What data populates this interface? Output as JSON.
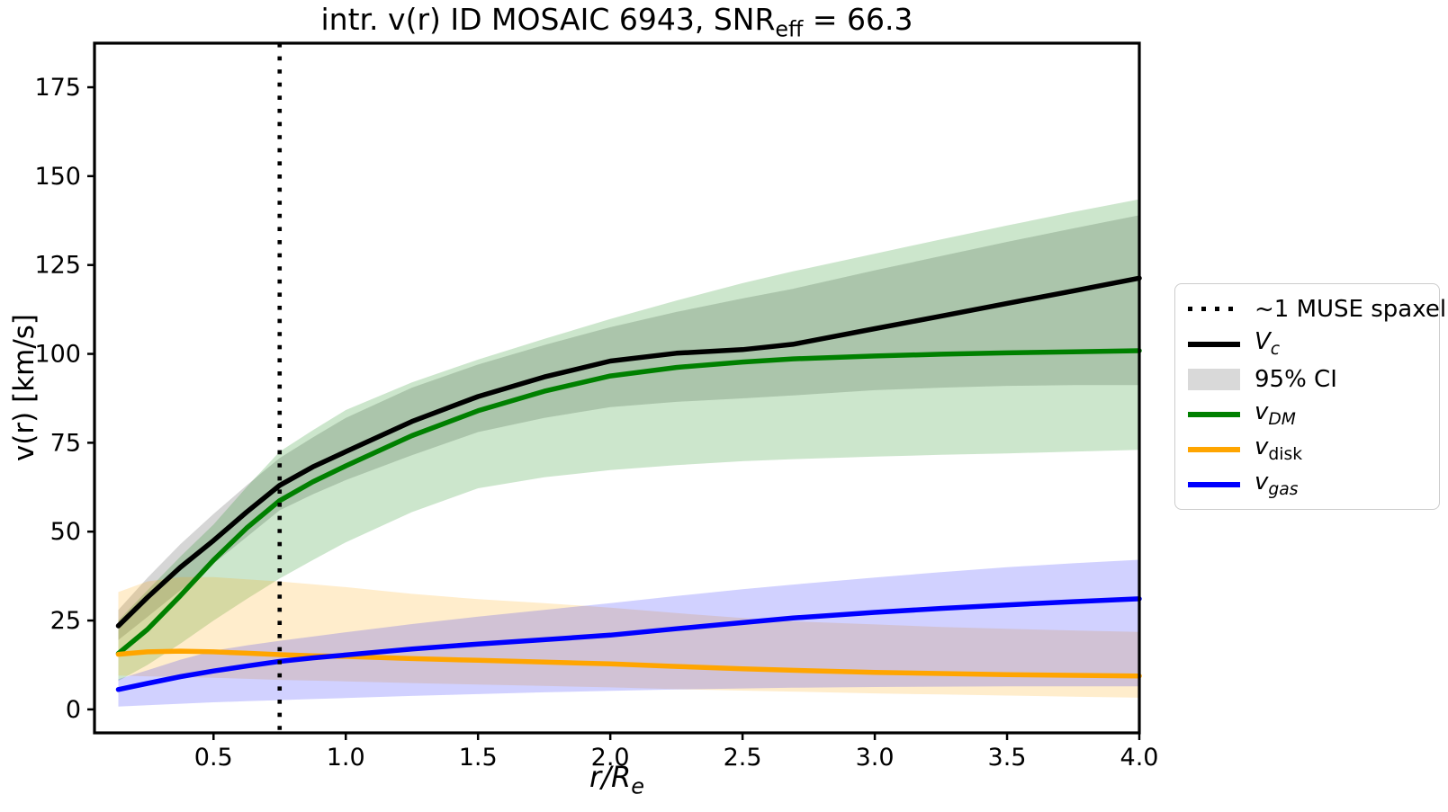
{
  "title": {
    "prefix": "intr. v(r) ID MOSAIC 6943, SNR",
    "sub": "eff",
    "suffix": " = 66.3"
  },
  "axes": {
    "ylabel": "v(r) [km/s]",
    "xlabel_main": "r/R",
    "xlabel_sub": "e",
    "x_tick_labels": [
      "0.5",
      "1.0",
      "1.5",
      "2.0",
      "2.5",
      "3.0",
      "3.5",
      "4.0"
    ],
    "x_tick_values": [
      0.5,
      1.0,
      1.5,
      2.0,
      2.5,
      3.0,
      3.5,
      4.0
    ],
    "y_tick_labels": [
      "0",
      "25",
      "50",
      "75",
      "100",
      "125",
      "150",
      "175"
    ],
    "y_tick_values": [
      0,
      25,
      50,
      75,
      100,
      125,
      150,
      175
    ]
  },
  "colors": {
    "vc": "#000000",
    "ci_band": "rgba(128,128,128,0.32)",
    "vdm": "#008000",
    "vdm_band": "rgba(0,128,0,0.20)",
    "vdisk": "#FFA500",
    "vdisk_band": "rgba(255,165,0,0.20)",
    "vgas": "#0000FF",
    "vgas_band": "rgba(0,0,255,0.18)",
    "vline": "#000000",
    "legend_patch": "#d9d9d9"
  },
  "legend": {
    "items": [
      {
        "name": "muse-spaxel",
        "swatch": "dotted",
        "color": "#000000",
        "label": [
          {
            "t": "~1 MUSE spaxel"
          }
        ]
      },
      {
        "name": "vc",
        "swatch": "line",
        "color": "#000000",
        "label": [
          {
            "t": "V",
            "i": 1
          },
          {
            "t": "c",
            "i": 1,
            "s": 1
          }
        ]
      },
      {
        "name": "ci",
        "swatch": "patch",
        "color": "#d9d9d9",
        "label": [
          {
            "t": "95% CI"
          }
        ]
      },
      {
        "name": "vdm",
        "swatch": "line",
        "color": "#008000",
        "label": [
          {
            "t": "v",
            "i": 1
          },
          {
            "t": "DM",
            "i": 1,
            "s": 1
          }
        ]
      },
      {
        "name": "vdisk",
        "swatch": "line",
        "color": "#FFA500",
        "label": [
          {
            "t": "v",
            "i": 1
          },
          {
            "t": "disk",
            "s": 1
          }
        ]
      },
      {
        "name": "vgas",
        "swatch": "line",
        "color": "#0000FF",
        "label": [
          {
            "t": "v",
            "i": 1
          },
          {
            "t": "gas",
            "i": 1,
            "s": 1
          }
        ]
      }
    ]
  },
  "chart_data": {
    "type": "line",
    "title": "intr. v(r) ID MOSAIC 6943, SNR_eff = 66.3",
    "xlabel": "r/R_e",
    "ylabel": "v(r) [km/s]",
    "xlim": [
      0.05,
      4.0
    ],
    "ylim": [
      -6.6,
      187.4
    ],
    "grid": false,
    "legend_position": "outside-right",
    "vline": {
      "x": 0.75,
      "style": "dotted",
      "color": "#000000",
      "label": "~1 MUSE spaxel"
    },
    "x": [
      0.14,
      0.25,
      0.375,
      0.5,
      0.625,
      0.75,
      0.875,
      1.0,
      1.25,
      1.5,
      1.75,
      2.0,
      2.25,
      2.5,
      2.69,
      3.0,
      3.25,
      3.5,
      3.75,
      4.0
    ],
    "series": [
      {
        "name": "V_c",
        "color": "#000000",
        "width": 5.5,
        "values": [
          23.5,
          31.5,
          40,
          47.5,
          55.5,
          63,
          68.2,
          72.5,
          81,
          88,
          93.5,
          98,
          100.2,
          101.2,
          102.7,
          107.1,
          110.6,
          114.2,
          117.7,
          121.3
        ],
        "band_name": "95% CI",
        "band_color": "rgba(128,128,128,0.32)",
        "band_lower": [
          19.5,
          26,
          33.5,
          41,
          48.5,
          56,
          60.5,
          64.5,
          71.5,
          78,
          82,
          85,
          86.5,
          87.5,
          88.3,
          89.8,
          90.5,
          91,
          91.2,
          91.2
        ],
        "band_upper": [
          28,
          37,
          46.5,
          55,
          63,
          70.7,
          76.5,
          82,
          90.5,
          97,
          102.5,
          107.5,
          111.8,
          115.6,
          118.3,
          123.5,
          127.5,
          131.5,
          135.3,
          139
        ]
      },
      {
        "name": "v_DM",
        "color": "#008000",
        "width": 5.5,
        "values": [
          15.7,
          22.5,
          32,
          42,
          51,
          58.7,
          64,
          68.5,
          77,
          84,
          89.5,
          93.8,
          96.2,
          97.7,
          98.6,
          99.4,
          99.9,
          100.3,
          100.6,
          100.9
        ],
        "band_color": "rgba(0,128,0,0.20)",
        "band_lower": [
          8,
          12.5,
          18.5,
          25,
          31,
          36.8,
          42,
          47,
          55.5,
          62.2,
          65.3,
          67.3,
          68.7,
          69.8,
          70.4,
          71.1,
          71.6,
          72,
          72.5,
          73
        ],
        "band_upper": [
          25,
          33.5,
          43,
          52,
          62.5,
          72.5,
          78.5,
          84.2,
          92,
          98.4,
          104.2,
          109.8,
          115,
          119.9,
          123.2,
          128.2,
          132.2,
          136.1,
          139.9,
          143.5
        ]
      },
      {
        "name": "v_disk",
        "color": "#FFA500",
        "width": 5.5,
        "values": [
          15.5,
          16.2,
          16.4,
          16.2,
          15.8,
          15.4,
          15.1,
          14.9,
          14.3,
          13.8,
          13.3,
          12.8,
          12.1,
          11.4,
          11.0,
          10.4,
          10.1,
          9.8,
          9.6,
          9.4
        ],
        "band_color": "rgba(255,165,0,0.20)",
        "band_lower": [
          9.5,
          9.3,
          9.1,
          8.9,
          8.6,
          8.3,
          8.1,
          7.9,
          7.4,
          7.0,
          6.6,
          6.2,
          5.7,
          5.3,
          5.0,
          4.5,
          4.2,
          3.9,
          3.6,
          3.3
        ],
        "band_upper": [
          33,
          36,
          37.2,
          37.2,
          36.6,
          36,
          35.2,
          34.4,
          32.5,
          31,
          29.9,
          28.6,
          27.1,
          25.7,
          24.8,
          23.9,
          23.2,
          22.7,
          22.2,
          21.8
        ]
      },
      {
        "name": "v_gas",
        "color": "#0000FF",
        "width": 5.5,
        "values": [
          5.6,
          7.3,
          9.2,
          10.8,
          12.2,
          13.5,
          14.5,
          15.3,
          17,
          18.4,
          19.6,
          20.9,
          22.7,
          24.4,
          25.7,
          27.3,
          28.4,
          29.4,
          30.3,
          31.1
        ],
        "band_color": "rgba(0,0,255,0.18)",
        "band_lower": [
          0.8,
          1.2,
          1.6,
          2.0,
          2.3,
          2.6,
          2.9,
          3.2,
          3.8,
          4.3,
          4.8,
          5.2,
          5.6,
          5.9,
          6.1,
          6.3,
          6.4,
          6.5,
          6.5,
          6.5
        ],
        "band_upper": [
          8.5,
          11,
          14,
          16.5,
          18,
          19.3,
          20.5,
          21.7,
          24,
          26.1,
          28,
          29.9,
          31.9,
          33.8,
          35.1,
          37.1,
          38.6,
          40,
          41.1,
          42.1
        ]
      }
    ]
  }
}
